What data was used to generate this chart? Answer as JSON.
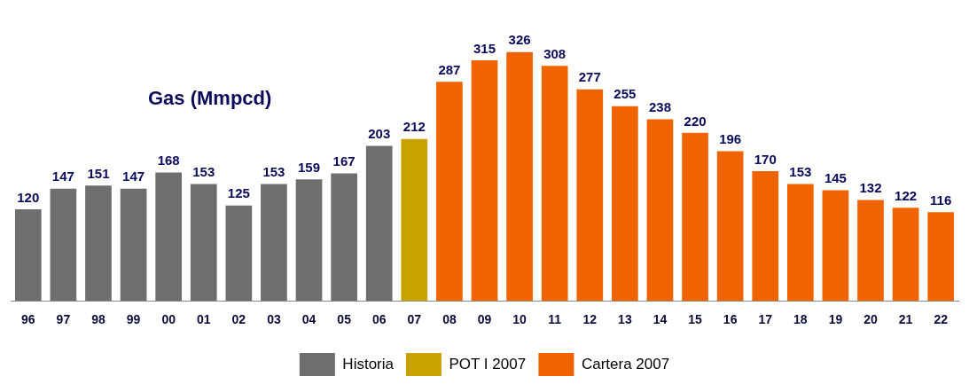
{
  "chart_data": {
    "type": "bar",
    "title": "Gas (Mmpcd)",
    "categories": [
      "96",
      "97",
      "98",
      "99",
      "00",
      "01",
      "02",
      "03",
      "04",
      "05",
      "06",
      "07",
      "08",
      "09",
      "10",
      "11",
      "12",
      "13",
      "14",
      "15",
      "16",
      "17",
      "18",
      "19",
      "20",
      "21",
      "22"
    ],
    "series": [
      {
        "name": "Historia",
        "color": "#6e6e6e",
        "values": [
          120,
          147,
          151,
          147,
          168,
          153,
          125,
          153,
          159,
          167,
          203,
          null,
          null,
          null,
          null,
          null,
          null,
          null,
          null,
          null,
          null,
          null,
          null,
          null,
          null,
          null,
          null
        ]
      },
      {
        "name": "POT I 2007",
        "color": "#c8a200",
        "values": [
          null,
          null,
          null,
          null,
          null,
          null,
          null,
          null,
          null,
          null,
          null,
          212,
          null,
          null,
          null,
          null,
          null,
          null,
          null,
          null,
          null,
          null,
          null,
          null,
          null,
          null,
          null
        ]
      },
      {
        "name": "Cartera 2007",
        "color": "#f06400",
        "values": [
          null,
          null,
          null,
          null,
          null,
          null,
          null,
          null,
          null,
          null,
          null,
          null,
          287,
          315,
          326,
          308,
          277,
          255,
          238,
          220,
          196,
          170,
          153,
          145,
          132,
          122,
          116
        ]
      }
    ],
    "data_labels": true,
    "grid": false,
    "legend": "bottom"
  }
}
